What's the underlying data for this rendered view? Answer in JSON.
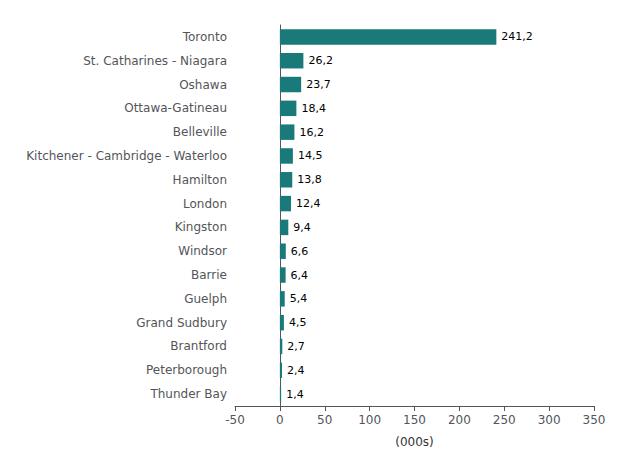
{
  "chart_data": {
    "type": "bar",
    "orientation": "horizontal",
    "categories": [
      "Thunder Bay",
      "Peterborough",
      "Brantford",
      "Grand Sudbury",
      "Guelph",
      "Barrie",
      "Windsor",
      "Kingston",
      "London",
      "Hamilton",
      "Kitchener - Cambridge - Waterloo",
      "Belleville",
      "Ottawa-Gatineau",
      "Oshawa",
      "St. Catharines - Niagara",
      "Toronto"
    ],
    "values": [
      1.4,
      2.4,
      2.7,
      4.5,
      5.4,
      6.4,
      6.6,
      9.4,
      12.4,
      13.8,
      14.5,
      16.2,
      18.4,
      23.7,
      26.2,
      241.2
    ],
    "value_labels": [
      "1,4",
      "2,4",
      "2,7",
      "4,5",
      "5,4",
      "6,4",
      "6,6",
      "9,4",
      "12,4",
      "13,8",
      "14,5",
      "16,2",
      "18,4",
      "23,7",
      "26,2",
      "241,2"
    ],
    "data_labels": true,
    "color": "#1a7a7a",
    "xlabel": "(000s)",
    "xlim": [
      -50,
      350
    ],
    "xticks": [
      -50,
      0,
      50,
      100,
      150,
      200,
      250,
      300,
      350
    ],
    "grid": false
  }
}
